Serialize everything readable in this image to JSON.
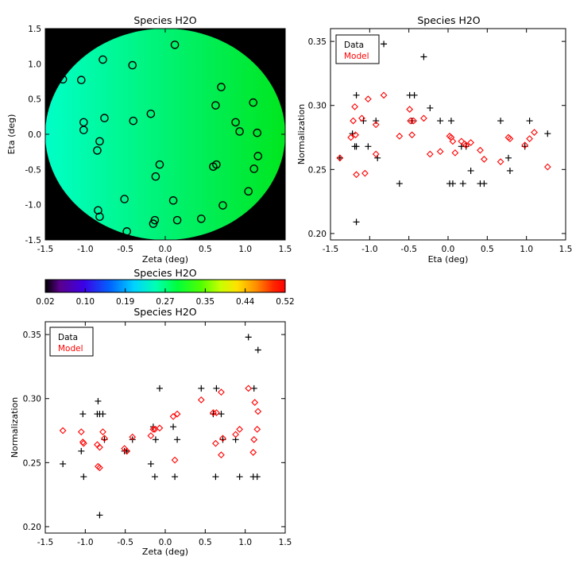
{
  "species_map": {
    "title": "Species H2O",
    "xlabel": "Zeta (deg)",
    "ylabel": "Eta (deg)",
    "xlim": [
      -1.5,
      1.5
    ],
    "ylim": [
      -1.5,
      1.5
    ],
    "xticks": [
      "-1.5",
      "-1.0",
      "-0.5",
      "0.0",
      "0.5",
      "1.0",
      "1.5"
    ],
    "yticks": [
      "-1.5",
      "-1.0",
      "-0.5",
      "0.0",
      "0.5",
      "1.0",
      "1.5"
    ],
    "background_color": "#000000",
    "field_left_color": "#00ffc8",
    "field_right_color": "#00e61e"
  },
  "colorbar": {
    "title": "Species H2O",
    "ticks": [
      "0.02",
      "0.10",
      "0.19",
      "0.27",
      "0.35",
      "0.44",
      "0.52"
    ]
  },
  "legend": {
    "data_label": "Data",
    "model_label": "Model",
    "data_color": "#000000",
    "model_color": "#ff0000"
  },
  "chart_data": [
    {
      "type": "scatter",
      "title": "Species H2O",
      "xlabel": "Zeta (deg)",
      "ylabel": "Eta (deg)",
      "xlim": [
        -1.5,
        1.5
      ],
      "ylim": [
        -1.5,
        1.5
      ],
      "series": [
        {
          "name": "Positions",
          "points": [
            [
              -1.28,
              0.78
            ],
            [
              -1.05,
              0.77
            ],
            [
              -1.02,
              0.17
            ],
            [
              -1.02,
              0.06
            ],
            [
              -0.78,
              1.06
            ],
            [
              -0.76,
              0.23
            ],
            [
              -0.82,
              -0.1
            ],
            [
              -0.85,
              -0.23
            ],
            [
              -0.84,
              -1.08
            ],
            [
              -0.82,
              -1.17
            ],
            [
              -0.41,
              0.98
            ],
            [
              -0.4,
              0.19
            ],
            [
              -0.51,
              -0.92
            ],
            [
              -0.48,
              -1.38
            ],
            [
              -0.18,
              0.29
            ],
            [
              0.12,
              1.27
            ],
            [
              -0.07,
              -0.43
            ],
            [
              -0.12,
              -0.6
            ],
            [
              -0.13,
              -1.22
            ],
            [
              -0.15,
              -1.27
            ],
            [
              0.1,
              -0.94
            ],
            [
              0.15,
              -1.22
            ],
            [
              0.63,
              0.41
            ],
            [
              0.7,
              0.67
            ],
            [
              0.64,
              -0.43
            ],
            [
              0.6,
              -0.46
            ],
            [
              0.72,
              -1.01
            ],
            [
              0.45,
              -1.2
            ],
            [
              0.88,
              0.17
            ],
            [
              0.93,
              0.04
            ],
            [
              1.1,
              0.45
            ],
            [
              1.15,
              0.02
            ],
            [
              1.16,
              -0.31
            ],
            [
              1.11,
              -0.49
            ],
            [
              1.04,
              -0.81
            ]
          ]
        }
      ]
    },
    {
      "type": "scatter",
      "title": "Species H2O",
      "xlabel": "Eta (deg)",
      "ylabel": "Normalization",
      "xlim": [
        -1.5,
        1.5
      ],
      "ylim": [
        0.195,
        0.36
      ],
      "yticks": [
        "0.20",
        "0.25",
        "0.30",
        "0.35"
      ],
      "xticks": [
        "-1.5",
        "-1.0",
        "-0.5",
        "0.0",
        "0.5",
        "1.0",
        "1.5"
      ],
      "series": [
        {
          "name": "Data",
          "points": [
            [
              -1.38,
              0.259
            ],
            [
              -1.22,
              0.278
            ],
            [
              -1.19,
              0.268
            ],
            [
              -1.17,
              0.268
            ],
            [
              -1.17,
              0.308
            ],
            [
              -1.17,
              0.209
            ],
            [
              -1.08,
              0.288
            ],
            [
              -1.02,
              0.268
            ],
            [
              -0.92,
              0.288
            ],
            [
              -0.9,
              0.259
            ],
            [
              -0.82,
              0.348
            ],
            [
              -0.62,
              0.239
            ],
            [
              -0.49,
              0.308
            ],
            [
              -0.46,
              0.288
            ],
            [
              -0.43,
              0.308
            ],
            [
              -0.31,
              0.338
            ],
            [
              -0.23,
              0.298
            ],
            [
              -0.1,
              0.288
            ],
            [
              0.02,
              0.239
            ],
            [
              0.04,
              0.288
            ],
            [
              0.06,
              0.239
            ],
            [
              0.17,
              0.268
            ],
            [
              0.19,
              0.239
            ],
            [
              0.23,
              0.268
            ],
            [
              0.29,
              0.249
            ],
            [
              0.41,
              0.239
            ],
            [
              0.46,
              0.239
            ],
            [
              0.67,
              0.288
            ],
            [
              0.77,
              0.259
            ],
            [
              0.79,
              0.249
            ],
            [
              0.98,
              0.268
            ],
            [
              1.04,
              0.288
            ],
            [
              1.27,
              0.278
            ]
          ]
        },
        {
          "name": "Model",
          "points": [
            [
              -1.38,
              0.259
            ],
            [
              -1.24,
              0.275
            ],
            [
              -1.21,
              0.288
            ],
            [
              -1.19,
              0.299
            ],
            [
              -1.18,
              0.277
            ],
            [
              -1.17,
              0.246
            ],
            [
              -1.1,
              0.29
            ],
            [
              -1.06,
              0.247
            ],
            [
              -1.02,
              0.305
            ],
            [
              -0.92,
              0.262
            ],
            [
              -0.92,
              0.285
            ],
            [
              -0.82,
              0.308
            ],
            [
              -0.62,
              0.276
            ],
            [
              -0.49,
              0.297
            ],
            [
              -0.48,
              0.288
            ],
            [
              -0.46,
              0.277
            ],
            [
              -0.44,
              0.288
            ],
            [
              -0.31,
              0.29
            ],
            [
              -0.23,
              0.262
            ],
            [
              -0.1,
              0.264
            ],
            [
              0.02,
              0.276
            ],
            [
              0.04,
              0.275
            ],
            [
              0.06,
              0.272
            ],
            [
              0.09,
              0.263
            ],
            [
              0.17,
              0.272
            ],
            [
              0.21,
              0.27
            ],
            [
              0.23,
              0.269
            ],
            [
              0.29,
              0.271
            ],
            [
              0.41,
              0.265
            ],
            [
              0.46,
              0.258
            ],
            [
              0.67,
              0.256
            ],
            [
              0.77,
              0.275
            ],
            [
              0.79,
              0.274
            ],
            [
              0.98,
              0.269
            ],
            [
              1.04,
              0.274
            ],
            [
              1.1,
              0.279
            ],
            [
              1.27,
              0.252
            ]
          ]
        }
      ]
    },
    {
      "type": "scatter",
      "title": "Species H2O",
      "xlabel": "Zeta (deg)",
      "ylabel": "Normalization",
      "xlim": [
        -1.5,
        1.5
      ],
      "ylim": [
        0.195,
        0.36
      ],
      "yticks": [
        "0.20",
        "0.25",
        "0.30",
        "0.35"
      ],
      "xticks": [
        "-1.5",
        "-1.0",
        "-0.5",
        "0.0",
        "0.5",
        "1.0",
        "1.5"
      ],
      "series": [
        {
          "name": "Data",
          "points": [
            [
              -1.28,
              0.249
            ],
            [
              -1.05,
              0.259
            ],
            [
              -1.03,
              0.288
            ],
            [
              -1.02,
              0.239
            ],
            [
              -0.85,
              0.288
            ],
            [
              -0.84,
              0.298
            ],
            [
              -0.82,
              0.288
            ],
            [
              -0.82,
              0.209
            ],
            [
              -0.78,
              0.288
            ],
            [
              -0.76,
              0.268
            ],
            [
              -0.51,
              0.259
            ],
            [
              -0.48,
              0.259
            ],
            [
              -0.41,
              0.268
            ],
            [
              -0.18,
              0.249
            ],
            [
              -0.15,
              0.278
            ],
            [
              -0.13,
              0.239
            ],
            [
              -0.12,
              0.268
            ],
            [
              -0.07,
              0.308
            ],
            [
              0.1,
              0.278
            ],
            [
              0.12,
              0.239
            ],
            [
              0.15,
              0.268
            ],
            [
              0.45,
              0.308
            ],
            [
              0.6,
              0.288
            ],
            [
              0.63,
              0.239
            ],
            [
              0.64,
              0.308
            ],
            [
              0.7,
              0.288
            ],
            [
              0.72,
              0.268
            ],
            [
              0.88,
              0.268
            ],
            [
              0.93,
              0.239
            ],
            [
              1.04,
              0.348
            ],
            [
              1.1,
              0.239
            ],
            [
              1.11,
              0.308
            ],
            [
              1.15,
              0.239
            ],
            [
              1.16,
              0.338
            ]
          ]
        },
        {
          "name": "Model",
          "points": [
            [
              -1.28,
              0.275
            ],
            [
              -1.05,
              0.274
            ],
            [
              -1.03,
              0.266
            ],
            [
              -1.02,
              0.265
            ],
            [
              -0.85,
              0.264
            ],
            [
              -0.84,
              0.247
            ],
            [
              -0.82,
              0.246
            ],
            [
              -0.82,
              0.262
            ],
            [
              -0.78,
              0.274
            ],
            [
              -0.76,
              0.269
            ],
            [
              -0.51,
              0.261
            ],
            [
              -0.48,
              0.259
            ],
            [
              -0.41,
              0.27
            ],
            [
              -0.18,
              0.271
            ],
            [
              -0.15,
              0.276
            ],
            [
              -0.13,
              0.276
            ],
            [
              -0.07,
              0.277
            ],
            [
              0.1,
              0.286
            ],
            [
              0.12,
              0.252
            ],
            [
              0.15,
              0.288
            ],
            [
              0.45,
              0.299
            ],
            [
              0.6,
              0.289
            ],
            [
              0.63,
              0.265
            ],
            [
              0.64,
              0.289
            ],
            [
              0.7,
              0.305
            ],
            [
              0.7,
              0.256
            ],
            [
              0.72,
              0.269
            ],
            [
              0.88,
              0.272
            ],
            [
              0.93,
              0.276
            ],
            [
              1.04,
              0.308
            ],
            [
              1.1,
              0.258
            ],
            [
              1.11,
              0.268
            ],
            [
              1.12,
              0.297
            ],
            [
              1.15,
              0.276
            ],
            [
              1.16,
              0.29
            ]
          ]
        }
      ]
    }
  ]
}
